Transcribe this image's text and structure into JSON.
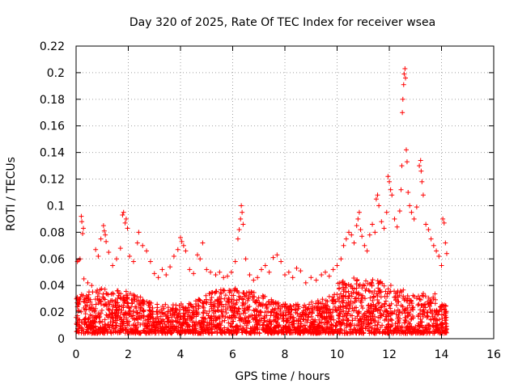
{
  "chart_data": {
    "type": "scatter",
    "title": "Day 320 of 2025, Rate Of TEC Index for receiver wsea",
    "xlabel": "GPS time / hours",
    "ylabel": "ROTI / TECUs",
    "xlim": [
      0,
      16
    ],
    "ylim": [
      0,
      0.22
    ],
    "xticks": [
      0,
      2,
      4,
      6,
      8,
      10,
      12,
      14,
      16
    ],
    "yticks": [
      0,
      0.02,
      0.04,
      0.06,
      0.08,
      0.1,
      0.12,
      0.14,
      0.16,
      0.18,
      0.2,
      0.22
    ],
    "xtick_labels": [
      "0",
      "2",
      "4",
      "6",
      "8",
      "10",
      "12",
      "14",
      "16"
    ],
    "ytick_labels": [
      "0",
      "0.02",
      "0.04",
      "0.06",
      "0.08",
      "0.1",
      "0.12",
      "0.14",
      "0.16",
      "0.18",
      "0.2",
      "0.22"
    ],
    "grid": true,
    "marker": "+",
    "color": "#ff0000",
    "series": [
      {
        "name": "ROTI",
        "points": [
          [
            0.05,
            0.058
          ],
          [
            0.1,
            0.059
          ],
          [
            0.15,
            0.06
          ],
          [
            0.2,
            0.092
          ],
          [
            0.22,
            0.088
          ],
          [
            0.25,
            0.079
          ],
          [
            0.28,
            0.083
          ],
          [
            0.3,
            0.045
          ],
          [
            0.45,
            0.042
          ],
          [
            0.6,
            0.04
          ],
          [
            0.75,
            0.067
          ],
          [
            0.85,
            0.062
          ],
          [
            0.95,
            0.075
          ],
          [
            1.05,
            0.085
          ],
          [
            1.08,
            0.081
          ],
          [
            1.12,
            0.078
          ],
          [
            1.15,
            0.073
          ],
          [
            1.25,
            0.065
          ],
          [
            1.4,
            0.055
          ],
          [
            1.55,
            0.06
          ],
          [
            1.7,
            0.068
          ],
          [
            1.78,
            0.093
          ],
          [
            1.82,
            0.095
          ],
          [
            1.88,
            0.087
          ],
          [
            1.92,
            0.09
          ],
          [
            1.97,
            0.083
          ],
          [
            2.05,
            0.062
          ],
          [
            2.2,
            0.058
          ],
          [
            2.35,
            0.072
          ],
          [
            2.4,
            0.08
          ],
          [
            2.55,
            0.07
          ],
          [
            2.7,
            0.066
          ],
          [
            2.85,
            0.058
          ],
          [
            3.0,
            0.049
          ],
          [
            3.15,
            0.046
          ],
          [
            3.3,
            0.052
          ],
          [
            3.45,
            0.048
          ],
          [
            3.6,
            0.054
          ],
          [
            3.75,
            0.062
          ],
          [
            3.9,
            0.067
          ],
          [
            4.0,
            0.076
          ],
          [
            4.05,
            0.073
          ],
          [
            4.12,
            0.07
          ],
          [
            4.2,
            0.066
          ],
          [
            4.35,
            0.052
          ],
          [
            4.5,
            0.049
          ],
          [
            4.65,
            0.063
          ],
          [
            4.75,
            0.06
          ],
          [
            4.85,
            0.072
          ],
          [
            5.0,
            0.052
          ],
          [
            5.15,
            0.05
          ],
          [
            5.35,
            0.048
          ],
          [
            5.5,
            0.05
          ],
          [
            5.65,
            0.046
          ],
          [
            5.8,
            0.047
          ],
          [
            5.95,
            0.05
          ],
          [
            6.1,
            0.058
          ],
          [
            6.2,
            0.075
          ],
          [
            6.25,
            0.082
          ],
          [
            6.3,
            0.09
          ],
          [
            6.33,
            0.1
          ],
          [
            6.36,
            0.095
          ],
          [
            6.4,
            0.086
          ],
          [
            6.5,
            0.06
          ],
          [
            6.65,
            0.048
          ],
          [
            6.8,
            0.044
          ],
          [
            6.95,
            0.046
          ],
          [
            7.1,
            0.052
          ],
          [
            7.25,
            0.055
          ],
          [
            7.4,
            0.05
          ],
          [
            7.55,
            0.061
          ],
          [
            7.7,
            0.063
          ],
          [
            7.85,
            0.058
          ],
          [
            8.0,
            0.048
          ],
          [
            8.15,
            0.05
          ],
          [
            8.3,
            0.046
          ],
          [
            8.45,
            0.053
          ],
          [
            8.6,
            0.051
          ],
          [
            8.8,
            0.042
          ],
          [
            9.0,
            0.046
          ],
          [
            9.2,
            0.044
          ],
          [
            9.4,
            0.048
          ],
          [
            9.55,
            0.05
          ],
          [
            9.7,
            0.047
          ],
          [
            9.85,
            0.052
          ],
          [
            10.0,
            0.055
          ],
          [
            10.15,
            0.06
          ],
          [
            10.25,
            0.07
          ],
          [
            10.35,
            0.075
          ],
          [
            10.45,
            0.08
          ],
          [
            10.55,
            0.078
          ],
          [
            10.65,
            0.072
          ],
          [
            10.75,
            0.085
          ],
          [
            10.8,
            0.09
          ],
          [
            10.85,
            0.095
          ],
          [
            10.9,
            0.082
          ],
          [
            10.95,
            0.077
          ],
          [
            11.05,
            0.07
          ],
          [
            11.15,
            0.066
          ],
          [
            11.25,
            0.078
          ],
          [
            11.35,
            0.086
          ],
          [
            11.45,
            0.08
          ],
          [
            11.5,
            0.105
          ],
          [
            11.55,
            0.108
          ],
          [
            11.6,
            0.1
          ],
          [
            11.7,
            0.088
          ],
          [
            11.8,
            0.083
          ],
          [
            11.9,
            0.095
          ],
          [
            11.95,
            0.122
          ],
          [
            12.0,
            0.118
          ],
          [
            12.05,
            0.112
          ],
          [
            12.1,
            0.108
          ],
          [
            12.2,
            0.09
          ],
          [
            12.3,
            0.084
          ],
          [
            12.4,
            0.096
          ],
          [
            12.45,
            0.112
          ],
          [
            12.48,
            0.13
          ],
          [
            12.5,
            0.17
          ],
          [
            12.52,
            0.18
          ],
          [
            12.55,
            0.191
          ],
          [
            12.57,
            0.199
          ],
          [
            12.6,
            0.203
          ],
          [
            12.62,
            0.196
          ],
          [
            12.65,
            0.142
          ],
          [
            12.68,
            0.133
          ],
          [
            12.72,
            0.11
          ],
          [
            12.78,
            0.1
          ],
          [
            12.85,
            0.095
          ],
          [
            12.95,
            0.09
          ],
          [
            13.05,
            0.099
          ],
          [
            13.15,
            0.13
          ],
          [
            13.2,
            0.134
          ],
          [
            13.22,
            0.126
          ],
          [
            13.25,
            0.118
          ],
          [
            13.3,
            0.108
          ],
          [
            13.4,
            0.086
          ],
          [
            13.5,
            0.082
          ],
          [
            13.6,
            0.075
          ],
          [
            13.7,
            0.07
          ],
          [
            13.8,
            0.066
          ],
          [
            13.9,
            0.062
          ],
          [
            14.0,
            0.055
          ],
          [
            14.05,
            0.09
          ],
          [
            14.1,
            0.087
          ],
          [
            14.15,
            0.072
          ],
          [
            14.2,
            0.064
          ]
        ]
      }
    ]
  }
}
